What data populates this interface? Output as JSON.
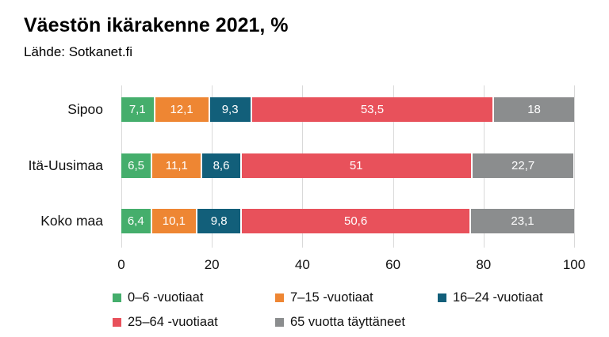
{
  "title": "Väestön ikärakenne 2021, %",
  "source": "Lähde: Sotkanet.fi",
  "chart_data": {
    "type": "bar",
    "orientation": "horizontal",
    "stacked": true,
    "title": "Väestön ikärakenne 2021, %",
    "subtitle": "Lähde: Sotkanet.fi",
    "categories": [
      "Sipoo",
      "Itä-Uusimaa",
      "Koko maa"
    ],
    "series": [
      {
        "name": "0–6 -vuotiaat",
        "color": "#45ae6c",
        "values": [
          7.1,
          6.5,
          6.4
        ],
        "labels": [
          "7,1",
          "6,5",
          "6,4"
        ]
      },
      {
        "name": "7–15 -vuotiaat",
        "color": "#ee8633",
        "values": [
          12.1,
          11.1,
          10.1
        ],
        "labels": [
          "12,1",
          "11,1",
          "10,1"
        ]
      },
      {
        "name": "16–24 -vuotiaat",
        "color": "#125f7a",
        "values": [
          9.3,
          8.6,
          9.8
        ],
        "labels": [
          "9,3",
          "8,6",
          "9,8"
        ]
      },
      {
        "name": "25–64 -vuotiaat",
        "color": "#e8515b",
        "values": [
          53.5,
          51,
          50.6
        ],
        "labels": [
          "53,5",
          "51",
          "50,6"
        ]
      },
      {
        "name": "65 vuotta täyttäneet",
        "color": "#8b8d8e",
        "values": [
          18,
          22.7,
          23.1
        ],
        "labels": [
          "18",
          "22,7",
          "23,1"
        ]
      }
    ],
    "x_ticks": [
      "0",
      "20",
      "40",
      "60",
      "80",
      "100"
    ],
    "xlim": [
      0,
      100
    ],
    "grid": "vertical",
    "gridline_color": "#d9d9d9",
    "value_label_color": "#ffffff",
    "legend_position": "bottom"
  }
}
